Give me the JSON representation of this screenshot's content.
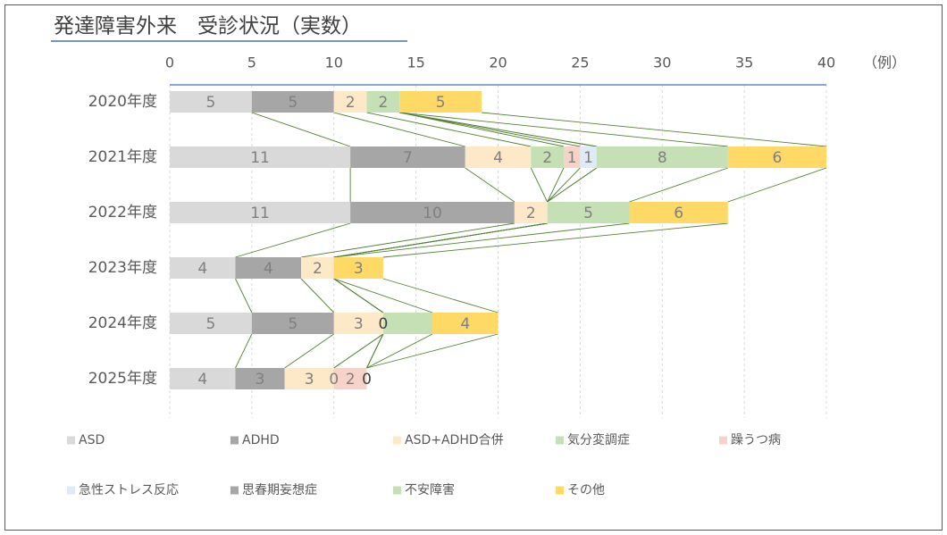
{
  "chart_data": {
    "type": "bar",
    "orientation": "horizontal",
    "stacked": true,
    "title": "発達障害外来　受診状況（実数）",
    "xlabel": "（例）",
    "categories": [
      "2020年度",
      "2021年度",
      "2022年度",
      "2023年度",
      "2024年度",
      "2025年度"
    ],
    "xlim": [
      0,
      40
    ],
    "xticks": [
      0,
      5,
      10,
      15,
      20,
      25,
      30,
      35,
      40
    ],
    "grid": true,
    "series_lines": true,
    "series_line_color": "#548235",
    "series": [
      {
        "name": "ASD",
        "color": "#d9d9d9",
        "label_color": "#7f7f7f",
        "values": [
          5,
          11,
          11,
          4,
          5,
          4
        ],
        "value_labels": [
          "5",
          "11",
          "11",
          "4",
          "5",
          "4"
        ]
      },
      {
        "name": "ADHD",
        "color": "#a6a6a6",
        "label_color": "#7f7f7f",
        "values": [
          5,
          7,
          10,
          4,
          5,
          3
        ],
        "value_labels": [
          "5",
          "7",
          "10",
          "4",
          "5",
          "3"
        ]
      },
      {
        "name": "ASD+ADHD合併",
        "color": "#fde9c8",
        "label_color": "#7f7f7f",
        "values": [
          2,
          4,
          2,
          2,
          3,
          3
        ],
        "value_labels": [
          "2",
          "4",
          "2",
          "2",
          "3",
          "3"
        ]
      },
      {
        "name": "気分変調症",
        "color": "#c5e0b4",
        "label_color": "#7f7f7f",
        "values": [
          2,
          2,
          0,
          0,
          0,
          0
        ],
        "value_labels": [
          "2",
          "2",
          null,
          null,
          null,
          "0"
        ]
      },
      {
        "name": "躁うつ病",
        "color": "#f6d3c9",
        "label_color": "#7f7f7f",
        "values": [
          0,
          1,
          0,
          0,
          0,
          2
        ],
        "value_labels": [
          null,
          "1",
          null,
          null,
          null,
          "2"
        ]
      },
      {
        "name": "急性ストレス反応",
        "color": "#deebf7",
        "label_color": "#7f7f7f",
        "values": [
          0,
          1,
          0,
          0,
          0,
          0
        ],
        "value_labels": [
          null,
          "1",
          null,
          null,
          null,
          null
        ]
      },
      {
        "name": "思春期妄想症",
        "color": "#a6a6a6",
        "label_color": "#404040",
        "values": [
          0,
          0,
          0,
          0,
          0,
          0
        ],
        "value_labels": [
          null,
          null,
          null,
          null,
          "0",
          "0"
        ]
      },
      {
        "name": "不安障害",
        "color": "#c5e0b4",
        "label_color": "#7f7f7f",
        "values": [
          0,
          8,
          5,
          0,
          3,
          0
        ],
        "value_labels": [
          null,
          "8",
          "5",
          null,
          null,
          null
        ]
      },
      {
        "name": "その他",
        "color": "#ffd966",
        "label_color": "#7f7f7f",
        "values": [
          5,
          6,
          6,
          3,
          4,
          0
        ],
        "value_labels": [
          "5",
          "6",
          "6",
          "3",
          "4",
          null
        ]
      }
    ]
  }
}
